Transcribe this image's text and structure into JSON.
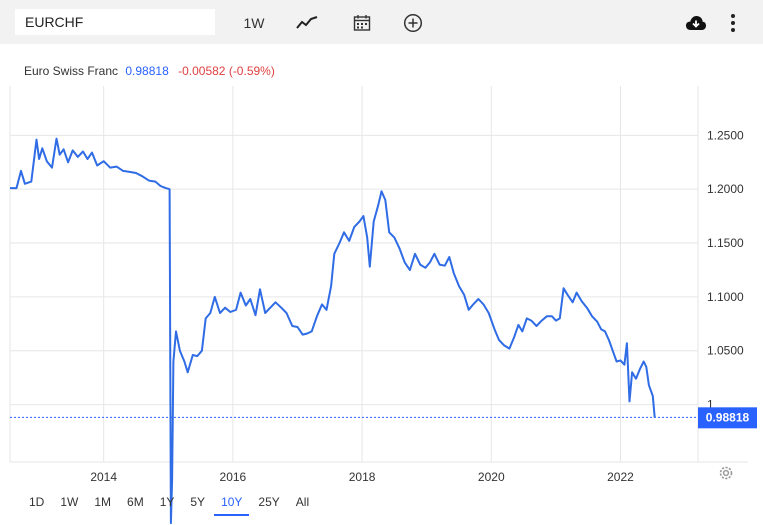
{
  "toolbar": {
    "symbol": "EURCHF",
    "interval_label": "1W",
    "icons": [
      "line-chart-icon",
      "calendar-icon",
      "plus-circle-icon",
      "cloud-download-icon",
      "more-vertical-icon"
    ]
  },
  "legend": {
    "name": "Euro Swiss Franc",
    "price": "0.98818",
    "change": "-0.00582 (-0.59%)"
  },
  "ranges": [
    "1D",
    "1W",
    "1M",
    "6M",
    "1Y",
    "5Y",
    "10Y",
    "25Y",
    "All"
  ],
  "active_range": "10Y",
  "colors": {
    "line": "#2f6ce5",
    "accent": "#2962ff",
    "negative": "#e04040",
    "grid": "#e6e6e6"
  },
  "chart_data": {
    "type": "line",
    "series": [
      {
        "values": [
          [
            2012.55,
            1.201
          ],
          [
            2012.65,
            1.201
          ],
          [
            2012.72,
            1.217
          ],
          [
            2012.78,
            1.205
          ],
          [
            2012.88,
            1.207
          ],
          [
            2012.96,
            1.246
          ],
          [
            2013.0,
            1.228
          ],
          [
            2013.05,
            1.238
          ],
          [
            2013.12,
            1.226
          ],
          [
            2013.2,
            1.22
          ],
          [
            2013.27,
            1.247
          ],
          [
            2013.32,
            1.232
          ],
          [
            2013.38,
            1.237
          ],
          [
            2013.45,
            1.225
          ],
          [
            2013.52,
            1.236
          ],
          [
            2013.6,
            1.23
          ],
          [
            2013.68,
            1.235
          ],
          [
            2013.75,
            1.228
          ],
          [
            2013.82,
            1.234
          ],
          [
            2013.9,
            1.222
          ],
          [
            2014.0,
            1.226
          ],
          [
            2014.1,
            1.22
          ],
          [
            2014.2,
            1.221
          ],
          [
            2014.3,
            1.217
          ],
          [
            2014.4,
            1.216
          ],
          [
            2014.5,
            1.215
          ],
          [
            2014.6,
            1.212
          ],
          [
            2014.7,
            1.208
          ],
          [
            2014.8,
            1.207
          ],
          [
            2014.88,
            1.203
          ],
          [
            2014.96,
            1.201
          ],
          [
            2015.02,
            1.2
          ],
          [
            2015.04,
            0.89
          ],
          [
            2015.06,
            0.93
          ],
          [
            2015.08,
            1.04
          ],
          [
            2015.12,
            1.068
          ],
          [
            2015.18,
            1.05
          ],
          [
            2015.25,
            1.04
          ],
          [
            2015.3,
            1.03
          ],
          [
            2015.38,
            1.046
          ],
          [
            2015.45,
            1.045
          ],
          [
            2015.52,
            1.05
          ],
          [
            2015.58,
            1.08
          ],
          [
            2015.65,
            1.085
          ],
          [
            2015.72,
            1.1
          ],
          [
            2015.8,
            1.085
          ],
          [
            2015.88,
            1.09
          ],
          [
            2015.96,
            1.086
          ],
          [
            2016.05,
            1.088
          ],
          [
            2016.12,
            1.104
          ],
          [
            2016.2,
            1.092
          ],
          [
            2016.27,
            1.098
          ],
          [
            2016.35,
            1.083
          ],
          [
            2016.42,
            1.107
          ],
          [
            2016.5,
            1.085
          ],
          [
            2016.58,
            1.09
          ],
          [
            2016.66,
            1.095
          ],
          [
            2016.75,
            1.09
          ],
          [
            2016.83,
            1.085
          ],
          [
            2016.92,
            1.073
          ],
          [
            2017.0,
            1.072
          ],
          [
            2017.08,
            1.065
          ],
          [
            2017.15,
            1.066
          ],
          [
            2017.22,
            1.068
          ],
          [
            2017.3,
            1.082
          ],
          [
            2017.38,
            1.093
          ],
          [
            2017.45,
            1.088
          ],
          [
            2017.52,
            1.11
          ],
          [
            2017.57,
            1.14
          ],
          [
            2017.65,
            1.15
          ],
          [
            2017.72,
            1.16
          ],
          [
            2017.8,
            1.152
          ],
          [
            2017.88,
            1.165
          ],
          [
            2017.96,
            1.17
          ],
          [
            2018.02,
            1.175
          ],
          [
            2018.08,
            1.155
          ],
          [
            2018.12,
            1.128
          ],
          [
            2018.18,
            1.17
          ],
          [
            2018.25,
            1.185
          ],
          [
            2018.3,
            1.198
          ],
          [
            2018.36,
            1.19
          ],
          [
            2018.42,
            1.16
          ],
          [
            2018.5,
            1.155
          ],
          [
            2018.58,
            1.145
          ],
          [
            2018.66,
            1.132
          ],
          [
            2018.74,
            1.125
          ],
          [
            2018.82,
            1.14
          ],
          [
            2018.9,
            1.13
          ],
          [
            2018.98,
            1.127
          ],
          [
            2019.05,
            1.132
          ],
          [
            2019.12,
            1.14
          ],
          [
            2019.2,
            1.13
          ],
          [
            2019.28,
            1.129
          ],
          [
            2019.35,
            1.137
          ],
          [
            2019.42,
            1.122
          ],
          [
            2019.5,
            1.11
          ],
          [
            2019.58,
            1.102
          ],
          [
            2019.65,
            1.088
          ],
          [
            2019.72,
            1.093
          ],
          [
            2019.8,
            1.098
          ],
          [
            2019.88,
            1.093
          ],
          [
            2019.96,
            1.085
          ],
          [
            2020.05,
            1.07
          ],
          [
            2020.12,
            1.06
          ],
          [
            2020.2,
            1.055
          ],
          [
            2020.28,
            1.052
          ],
          [
            2020.35,
            1.062
          ],
          [
            2020.42,
            1.074
          ],
          [
            2020.48,
            1.068
          ],
          [
            2020.55,
            1.08
          ],
          [
            2020.62,
            1.078
          ],
          [
            2020.7,
            1.073
          ],
          [
            2020.78,
            1.078
          ],
          [
            2020.86,
            1.082
          ],
          [
            2020.94,
            1.082
          ],
          [
            2021.0,
            1.078
          ],
          [
            2021.06,
            1.08
          ],
          [
            2021.12,
            1.108
          ],
          [
            2021.18,
            1.102
          ],
          [
            2021.26,
            1.095
          ],
          [
            2021.32,
            1.104
          ],
          [
            2021.4,
            1.096
          ],
          [
            2021.48,
            1.09
          ],
          [
            2021.56,
            1.082
          ],
          [
            2021.64,
            1.077
          ],
          [
            2021.7,
            1.07
          ],
          [
            2021.76,
            1.068
          ],
          [
            2021.82,
            1.06
          ],
          [
            2021.88,
            1.05
          ],
          [
            2021.94,
            1.04
          ],
          [
            2022.0,
            1.041
          ],
          [
            2022.06,
            1.037
          ],
          [
            2022.1,
            1.057
          ],
          [
            2022.14,
            1.003
          ],
          [
            2022.18,
            1.03
          ],
          [
            2022.24,
            1.024
          ],
          [
            2022.3,
            1.033
          ],
          [
            2022.36,
            1.04
          ],
          [
            2022.4,
            1.035
          ],
          [
            2022.44,
            1.018
          ],
          [
            2022.5,
            1.008
          ],
          [
            2022.53,
            0.988
          ]
        ]
      }
    ],
    "x_ticks": [
      "2014",
      "2016",
      "2018",
      "2020",
      "2022"
    ],
    "y_ticks": [
      "1.2500",
      "1.2000",
      "1.1500",
      "1.1000",
      "1.0500",
      "1"
    ],
    "last_value_label": "0.98818",
    "xlim": [
      2012.55,
      2023.2
    ],
    "ylim": [
      0.9467,
      1.2958
    ],
    "y_scale": "linear",
    "grid": true,
    "price_axis": "right"
  }
}
